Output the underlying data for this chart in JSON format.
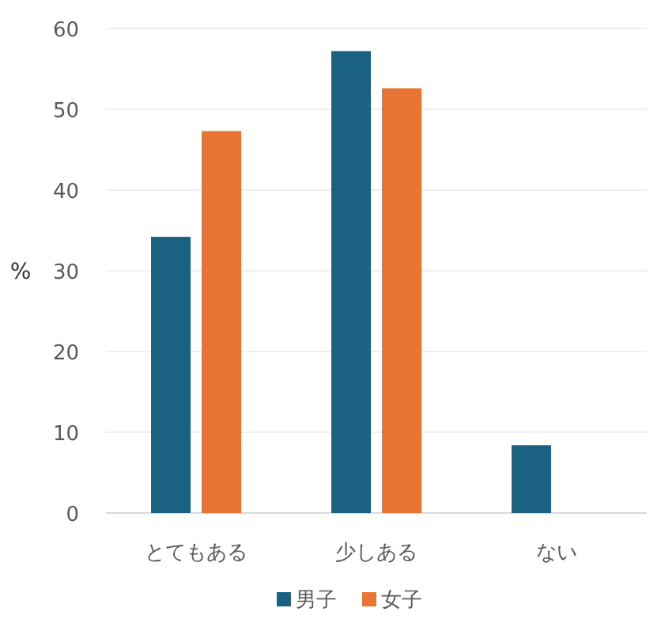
{
  "chart_data": {
    "type": "bar",
    "ylabel": "%",
    "categories": [
      "とてもある",
      "少しある",
      "ない"
    ],
    "series": [
      {
        "name": "男子",
        "color": "#1a6182",
        "values": [
          34.2,
          57.2,
          8.4
        ]
      },
      {
        "name": "女子",
        "color": "#e97434",
        "values": [
          47.3,
          52.6,
          null
        ]
      }
    ],
    "ylim": [
      0,
      60
    ],
    "yticks": [
      0,
      10,
      20,
      30,
      40,
      50,
      60
    ],
    "grid": "y",
    "legend": "bottom"
  }
}
